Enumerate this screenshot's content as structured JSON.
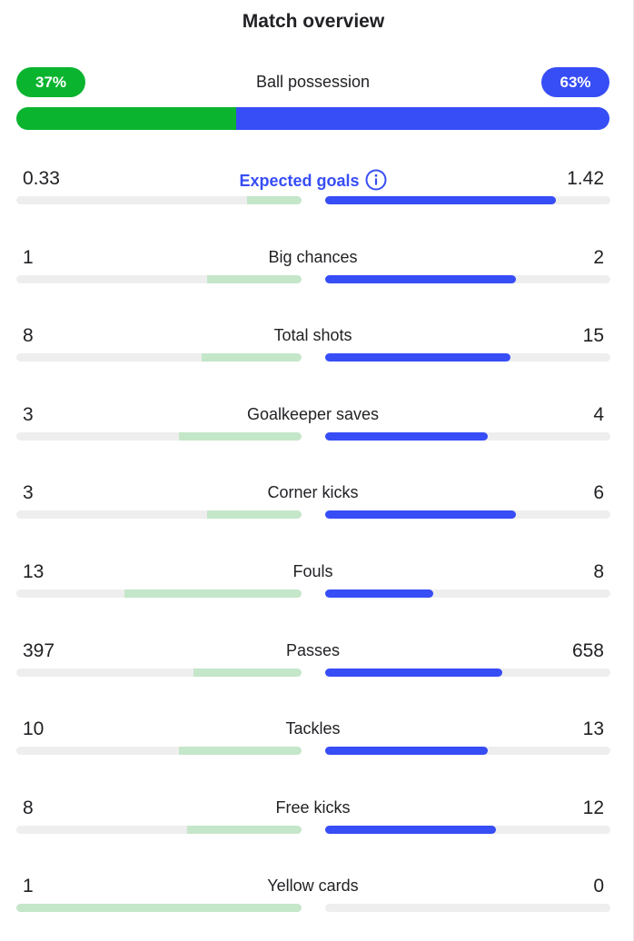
{
  "title": "Match overview",
  "colors": {
    "home": "#0ab42f",
    "away": "#374df5",
    "home_light": "#c4e6c9",
    "track": "#eeeeee"
  },
  "possession": {
    "label": "Ball possession",
    "home": "37%",
    "away": "63%",
    "home_fraction": 0.37
  },
  "stats": [
    {
      "label": "Expected goals",
      "home": "0.33",
      "away": "1.42",
      "home_fill": 0.19,
      "away_fill": 0.81,
      "link": true,
      "icon": "info-icon"
    },
    {
      "label": "Big chances",
      "home": "1",
      "away": "2",
      "home_fill": 0.33,
      "away_fill": 0.67
    },
    {
      "label": "Total shots",
      "home": "8",
      "away": "15",
      "home_fill": 0.35,
      "away_fill": 0.65
    },
    {
      "label": "Goalkeeper saves",
      "home": "3",
      "away": "4",
      "home_fill": 0.43,
      "away_fill": 0.57
    },
    {
      "label": "Corner kicks",
      "home": "3",
      "away": "6",
      "home_fill": 0.33,
      "away_fill": 0.67
    },
    {
      "label": "Fouls",
      "home": "13",
      "away": "8",
      "home_fill": 0.62,
      "away_fill": 0.38
    },
    {
      "label": "Passes",
      "home": "397",
      "away": "658",
      "home_fill": 0.38,
      "away_fill": 0.62
    },
    {
      "label": "Tackles",
      "home": "10",
      "away": "13",
      "home_fill": 0.43,
      "away_fill": 0.57
    },
    {
      "label": "Free kicks",
      "home": "8",
      "away": "12",
      "home_fill": 0.4,
      "away_fill": 0.6
    },
    {
      "label": "Yellow cards",
      "home": "1",
      "away": "0",
      "home_fill": 1.0,
      "away_fill": 0.0
    }
  ]
}
